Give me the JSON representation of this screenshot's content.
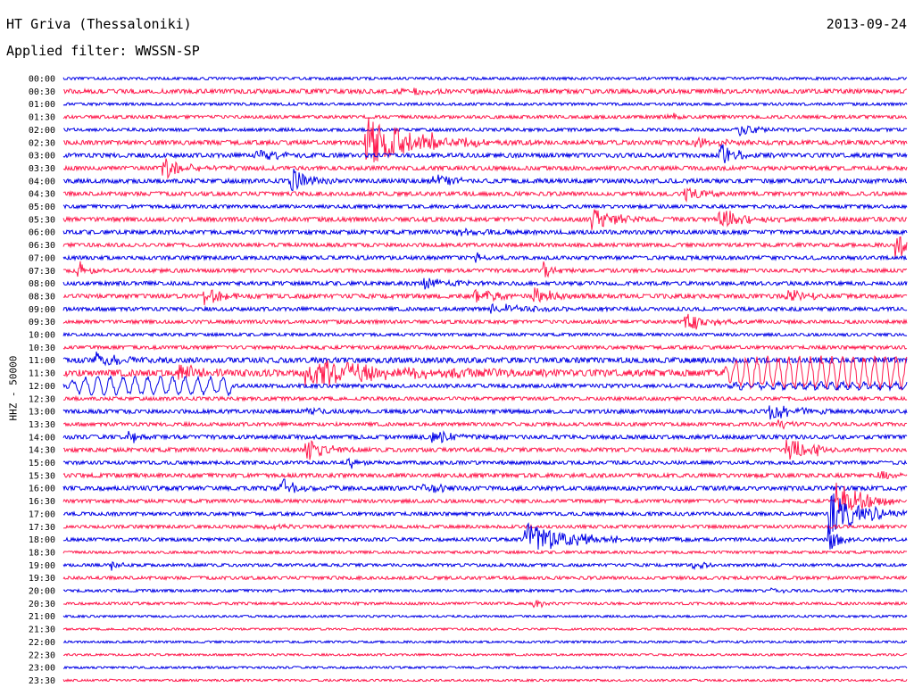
{
  "header": {
    "station": "HT Griva (Thessaloniki)",
    "date": "2013-09-24",
    "filter": "Applied filter: WWSSN-SP"
  },
  "colors": {
    "blue": "#0000e6",
    "red": "#ff1a4d"
  },
  "chart_data": {
    "type": "helicorder",
    "ylabel": "HHZ - 50000",
    "rows": [
      {
        "time": "00:00",
        "color": "blue",
        "amp": 1.0,
        "bursts": []
      },
      {
        "time": "00:30",
        "color": "red",
        "amp": 1.6,
        "bursts": [
          {
            "x": 0.4,
            "a": 3,
            "d": 0.05
          }
        ]
      },
      {
        "time": "01:00",
        "color": "blue",
        "amp": 1.0,
        "bursts": []
      },
      {
        "time": "01:30",
        "color": "red",
        "amp": 1.2,
        "bursts": [
          {
            "x": 0.72,
            "a": 4,
            "d": 0.01
          }
        ]
      },
      {
        "time": "02:00",
        "color": "blue",
        "amp": 1.2,
        "bursts": [
          {
            "x": 0.8,
            "a": 8,
            "d": 0.02
          }
        ]
      },
      {
        "time": "02:30",
        "color": "red",
        "amp": 1.6,
        "bursts": [
          {
            "x": 0.36,
            "a": 30,
            "d": 0.05
          },
          {
            "x": 0.44,
            "a": 6,
            "d": 0.04
          },
          {
            "x": 0.75,
            "a": 4,
            "d": 0.05
          }
        ]
      },
      {
        "time": "03:00",
        "color": "blue",
        "amp": 1.6,
        "bursts": [
          {
            "x": 0.23,
            "a": 8,
            "d": 0.02
          },
          {
            "x": 0.78,
            "a": 12,
            "d": 0.02
          }
        ]
      },
      {
        "time": "03:30",
        "color": "red",
        "amp": 1.5,
        "bursts": [
          {
            "x": 0.12,
            "a": 10,
            "d": 0.03
          }
        ]
      },
      {
        "time": "04:00",
        "color": "blue",
        "amp": 1.6,
        "bursts": [
          {
            "x": 0.27,
            "a": 12,
            "d": 0.02
          },
          {
            "x": 0.44,
            "a": 8,
            "d": 0.02
          }
        ]
      },
      {
        "time": "04:30",
        "color": "red",
        "amp": 1.5,
        "bursts": [
          {
            "x": 0.74,
            "a": 8,
            "d": 0.02
          }
        ]
      },
      {
        "time": "05:00",
        "color": "blue",
        "amp": 1.3,
        "bursts": []
      },
      {
        "time": "05:30",
        "color": "red",
        "amp": 1.6,
        "bursts": [
          {
            "x": 0.63,
            "a": 10,
            "d": 0.03
          },
          {
            "x": 0.78,
            "a": 12,
            "d": 0.03
          }
        ]
      },
      {
        "time": "06:00",
        "color": "blue",
        "amp": 1.5,
        "bursts": [
          {
            "x": 0.47,
            "a": 4,
            "d": 0.04
          }
        ]
      },
      {
        "time": "06:30",
        "color": "red",
        "amp": 1.4,
        "bursts": [
          {
            "x": 0.99,
            "a": 14,
            "d": 0.01
          }
        ]
      },
      {
        "time": "07:00",
        "color": "blue",
        "amp": 1.4,
        "bursts": [
          {
            "x": 0.49,
            "a": 5,
            "d": 0.01
          }
        ]
      },
      {
        "time": "07:30",
        "color": "red",
        "amp": 1.4,
        "bursts": [
          {
            "x": 0.02,
            "a": 10,
            "d": 0.01
          },
          {
            "x": 0.57,
            "a": 10,
            "d": 0.01
          }
        ]
      },
      {
        "time": "08:00",
        "color": "blue",
        "amp": 1.4,
        "bursts": [
          {
            "x": 0.43,
            "a": 6,
            "d": 0.03
          }
        ]
      },
      {
        "time": "08:30",
        "color": "red",
        "amp": 1.6,
        "bursts": [
          {
            "x": 0.17,
            "a": 10,
            "d": 0.02
          },
          {
            "x": 0.49,
            "a": 10,
            "d": 0.02
          },
          {
            "x": 0.56,
            "a": 10,
            "d": 0.02
          },
          {
            "x": 0.86,
            "a": 8,
            "d": 0.02
          }
        ]
      },
      {
        "time": "09:00",
        "color": "blue",
        "amp": 1.4,
        "bursts": [
          {
            "x": 0.51,
            "a": 6,
            "d": 0.04
          }
        ]
      },
      {
        "time": "09:30",
        "color": "red",
        "amp": 1.3,
        "bursts": [
          {
            "x": 0.74,
            "a": 10,
            "d": 0.03
          }
        ]
      },
      {
        "time": "10:00",
        "color": "blue",
        "amp": 1.1,
        "bursts": []
      },
      {
        "time": "10:30",
        "color": "red",
        "amp": 1.3,
        "bursts": []
      },
      {
        "time": "11:00",
        "color": "blue",
        "amp": 2.0,
        "bursts": [
          {
            "x": 0.04,
            "a": 8,
            "d": 0.03
          }
        ]
      },
      {
        "time": "11:30",
        "color": "red",
        "amp": 2.4,
        "bursts": [
          {
            "x": 0.14,
            "a": 8,
            "d": 0.03
          },
          {
            "x": 0.29,
            "a": 16,
            "d": 0.1
          }
        ],
        "wave": {
          "from": 0.78,
          "amp": 16,
          "period": 12
        }
      },
      {
        "time": "12:00",
        "color": "blue",
        "amp": 1.4,
        "bursts": [],
        "wave": {
          "from": 0.0,
          "to": 0.2,
          "amp": 9,
          "period": 14
        },
        "wave2": {
          "from": 0.78,
          "amp": 3,
          "period": 12
        }
      },
      {
        "time": "12:30",
        "color": "red",
        "amp": 1.3,
        "bursts": []
      },
      {
        "time": "13:00",
        "color": "blue",
        "amp": 1.5,
        "bursts": [
          {
            "x": 0.29,
            "a": 6,
            "d": 0.01
          },
          {
            "x": 0.84,
            "a": 8,
            "d": 0.03
          }
        ]
      },
      {
        "time": "13:30",
        "color": "red",
        "amp": 1.3,
        "bursts": [
          {
            "x": 0.85,
            "a": 4,
            "d": 0.02
          }
        ]
      },
      {
        "time": "14:00",
        "color": "blue",
        "amp": 1.5,
        "bursts": [
          {
            "x": 0.08,
            "a": 6,
            "d": 0.01
          },
          {
            "x": 0.44,
            "a": 6,
            "d": 0.03
          }
        ]
      },
      {
        "time": "14:30",
        "color": "red",
        "amp": 1.5,
        "bursts": [
          {
            "x": 0.29,
            "a": 14,
            "d": 0.02
          },
          {
            "x": 0.86,
            "a": 14,
            "d": 0.02
          },
          {
            "x": 0.89,
            "a": 6,
            "d": 0.01
          }
        ]
      },
      {
        "time": "15:00",
        "color": "blue",
        "amp": 1.3,
        "bursts": [
          {
            "x": 0.34,
            "a": 6,
            "d": 0.01
          }
        ]
      },
      {
        "time": "15:30",
        "color": "red",
        "amp": 1.5,
        "bursts": [
          {
            "x": 0.97,
            "a": 4,
            "d": 0.04
          }
        ]
      },
      {
        "time": "16:00",
        "color": "blue",
        "amp": 1.6,
        "bursts": [
          {
            "x": 0.26,
            "a": 10,
            "d": 0.02
          },
          {
            "x": 0.43,
            "a": 6,
            "d": 0.02
          }
        ]
      },
      {
        "time": "16:30",
        "color": "red",
        "amp": 1.3,
        "bursts": [
          {
            "x": 0.92,
            "a": 20,
            "d": 0.03
          }
        ]
      },
      {
        "time": "17:00",
        "color": "blue",
        "amp": 1.3,
        "bursts": [
          {
            "x": 0.91,
            "a": 22,
            "d": 0.04
          }
        ]
      },
      {
        "time": "17:30",
        "color": "red",
        "amp": 1.2,
        "bursts": [
          {
            "x": 0.24,
            "a": 4,
            "d": 0.02
          }
        ]
      },
      {
        "time": "18:00",
        "color": "blue",
        "amp": 1.3,
        "bursts": [
          {
            "x": 0.55,
            "a": 20,
            "d": 0.05
          },
          {
            "x": 0.91,
            "a": 16,
            "d": 0.01
          }
        ]
      },
      {
        "time": "18:30",
        "color": "red",
        "amp": 1.0,
        "bursts": []
      },
      {
        "time": "19:00",
        "color": "blue",
        "amp": 1.1,
        "bursts": [
          {
            "x": 0.06,
            "a": 5,
            "d": 0.01
          },
          {
            "x": 0.75,
            "a": 6,
            "d": 0.01
          }
        ]
      },
      {
        "time": "19:30",
        "color": "red",
        "amp": 1.2,
        "bursts": []
      },
      {
        "time": "20:00",
        "color": "blue",
        "amp": 1.0,
        "bursts": [
          {
            "x": 0.84,
            "a": 4,
            "d": 0.01
          }
        ]
      },
      {
        "time": "20:30",
        "color": "red",
        "amp": 1.0,
        "bursts": [
          {
            "x": 0.56,
            "a": 5,
            "d": 0.01
          }
        ]
      },
      {
        "time": "21:00",
        "color": "blue",
        "amp": 0.8,
        "bursts": []
      },
      {
        "time": "21:30",
        "color": "red",
        "amp": 0.8,
        "bursts": []
      },
      {
        "time": "22:00",
        "color": "blue",
        "amp": 0.8,
        "bursts": []
      },
      {
        "time": "22:30",
        "color": "red",
        "amp": 0.8,
        "bursts": []
      },
      {
        "time": "23:00",
        "color": "blue",
        "amp": 0.8,
        "bursts": []
      },
      {
        "time": "23:30",
        "color": "red",
        "amp": 0.8,
        "bursts": []
      }
    ]
  }
}
